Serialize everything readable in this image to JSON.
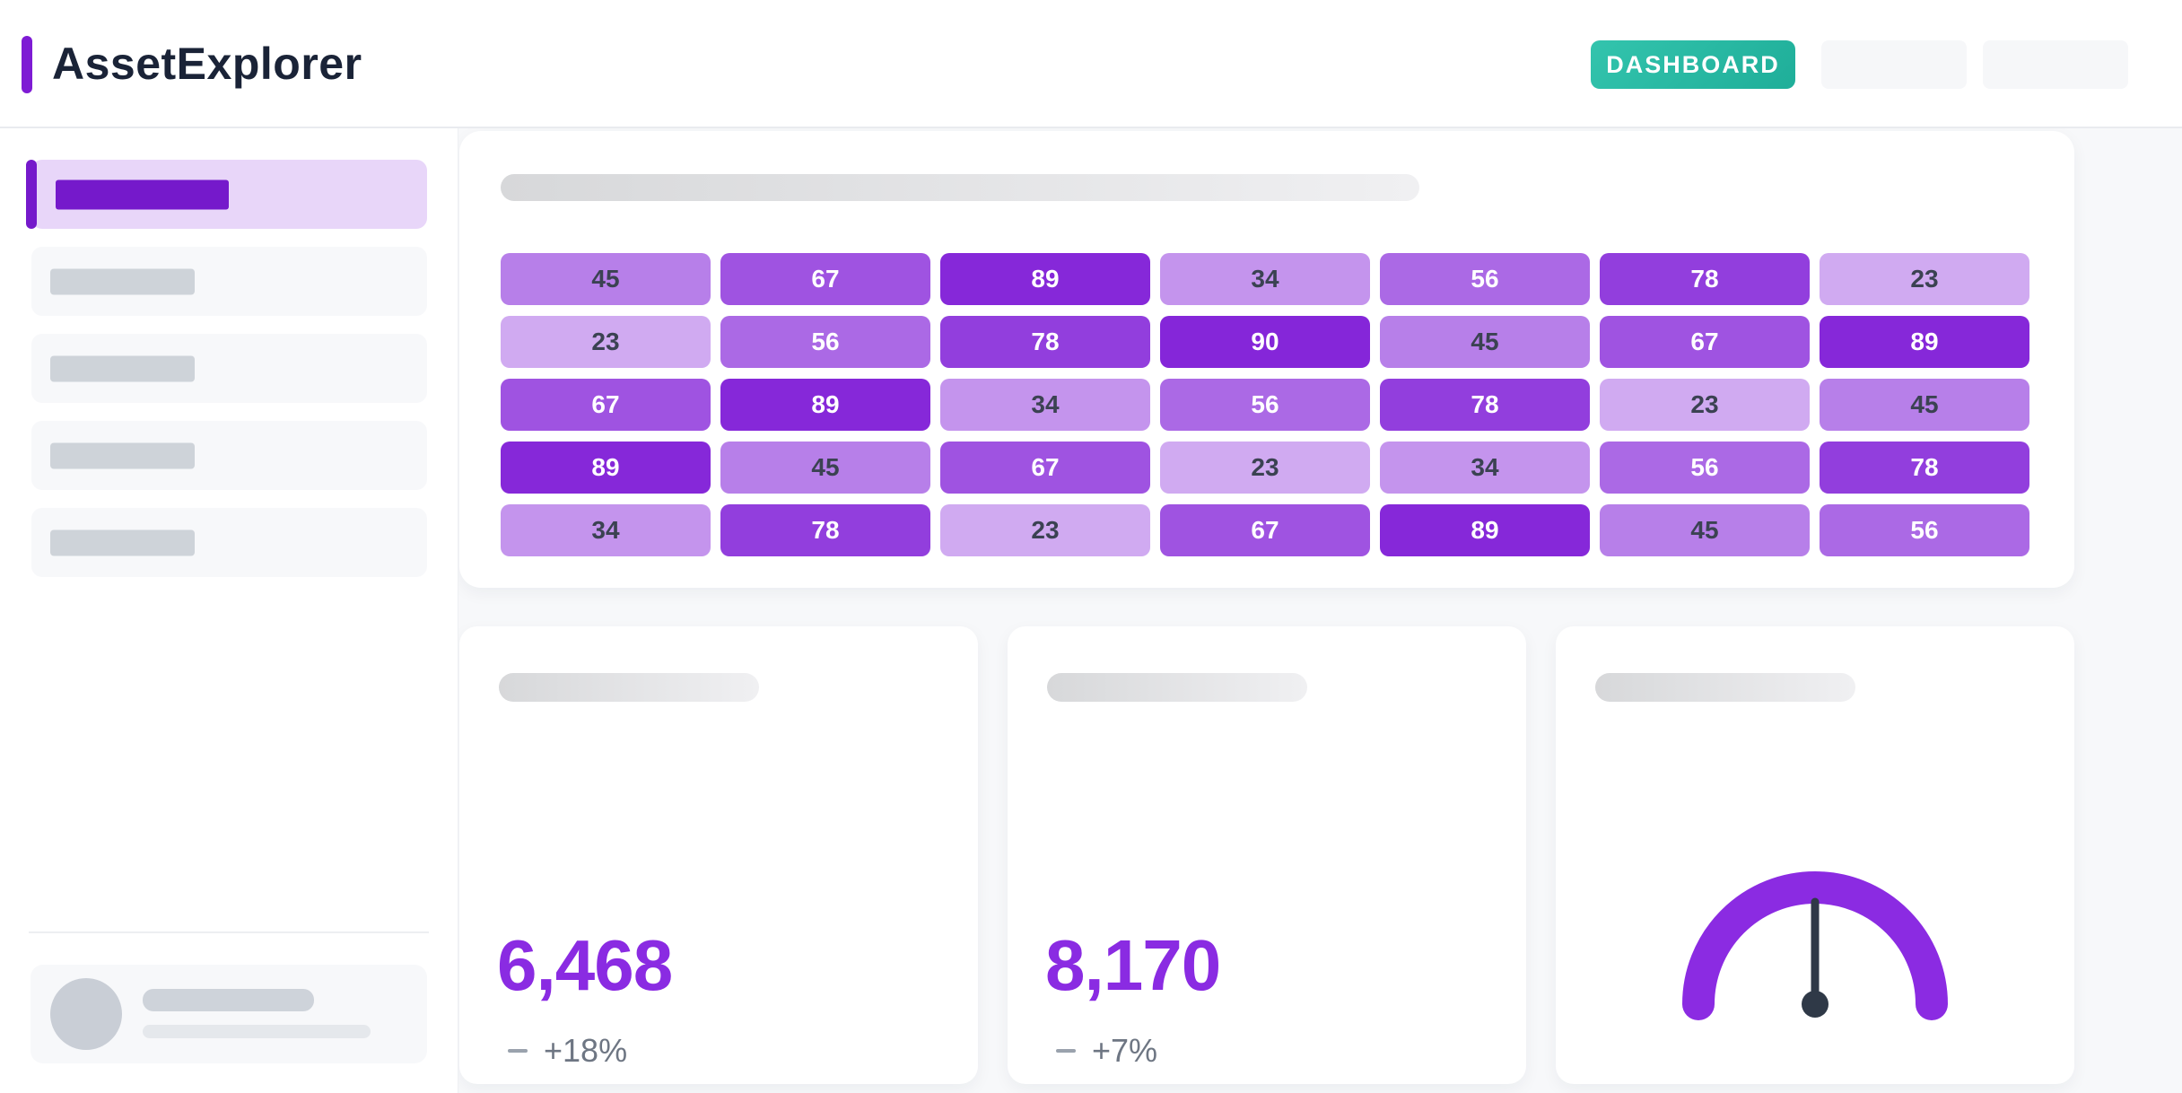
{
  "app": {
    "title": "AssetExplorer"
  },
  "header": {
    "nav_button": "DASHBOARD",
    "placeholder_button_count": 2
  },
  "sidebar": {
    "items": [
      {
        "active": true
      },
      {
        "active": false
      },
      {
        "active": false
      },
      {
        "active": false
      },
      {
        "active": false
      }
    ]
  },
  "colors": {
    "accent_purple": "#7519cb",
    "stat_purple": "#8a2be2",
    "nav_button_teal": "#27bda4",
    "main_background": "#f7f8fa"
  },
  "chart_data": [
    {
      "type": "heatmap",
      "rows": 5,
      "cols": 7,
      "values": [
        [
          45,
          67,
          89,
          34,
          56,
          78,
          23
        ],
        [
          23,
          56,
          78,
          90,
          45,
          67,
          89
        ],
        [
          67,
          89,
          34,
          56,
          78,
          23,
          45
        ],
        [
          89,
          45,
          67,
          23,
          34,
          56,
          78
        ],
        [
          34,
          78,
          23,
          67,
          89,
          45,
          56
        ]
      ],
      "value_range": [
        23,
        90
      ],
      "color_scale": {
        "min": "#d0aaf1",
        "max": "#8526d9"
      },
      "text_threshold": 50,
      "dark_text_color": "#3b4252",
      "light_text_color": "#ffffff"
    },
    {
      "type": "stat",
      "value": "6,468",
      "trend": "+18%"
    },
    {
      "type": "stat",
      "value": "8,170",
      "trend": "+7%"
    },
    {
      "type": "gauge",
      "needle_angle_deg": 0,
      "arc_color": "#8b2be2",
      "needle_color": "#2f3947"
    }
  ]
}
